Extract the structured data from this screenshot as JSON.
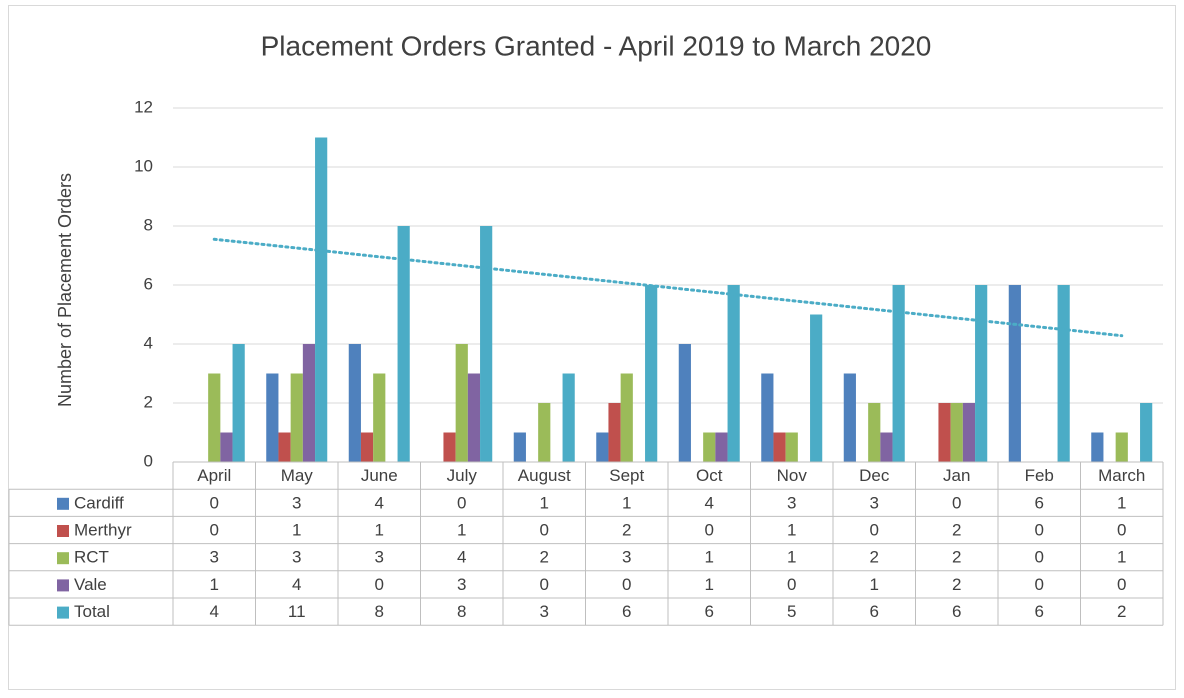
{
  "chart_data": {
    "type": "bar",
    "title": "Placement Orders Granted - April 2019 to March 2020",
    "y_label": "Number of Placement Orders",
    "categories": [
      "April",
      "May",
      "June",
      "July",
      "August",
      "Sept",
      "Oct",
      "Nov",
      "Dec",
      "Jan",
      "Feb",
      "March"
    ],
    "series": [
      {
        "name": "Cardiff",
        "color": "#4f81bd",
        "values": [
          0,
          3,
          4,
          0,
          1,
          1,
          4,
          3,
          3,
          0,
          6,
          1
        ]
      },
      {
        "name": "Merthyr",
        "color": "#c0504d",
        "values": [
          0,
          1,
          1,
          1,
          0,
          2,
          0,
          1,
          0,
          2,
          0,
          0
        ]
      },
      {
        "name": "RCT",
        "color": "#9bbb59",
        "values": [
          3,
          3,
          3,
          4,
          2,
          3,
          1,
          1,
          2,
          2,
          0,
          1
        ]
      },
      {
        "name": "Vale",
        "color": "#8064a2",
        "values": [
          1,
          4,
          0,
          3,
          0,
          0,
          1,
          0,
          1,
          2,
          0,
          0
        ]
      },
      {
        "name": "Total",
        "color": "#4bacc6",
        "values": [
          4,
          11,
          8,
          8,
          3,
          6,
          6,
          5,
          6,
          6,
          6,
          2
        ]
      }
    ],
    "ylim": [
      0,
      12
    ],
    "yticks": [
      0,
      2,
      4,
      6,
      8,
      10,
      12
    ],
    "grid": true,
    "data_table": true,
    "trendline": {
      "type": "linear",
      "series": "Total",
      "color": "#4bacc6"
    }
  }
}
